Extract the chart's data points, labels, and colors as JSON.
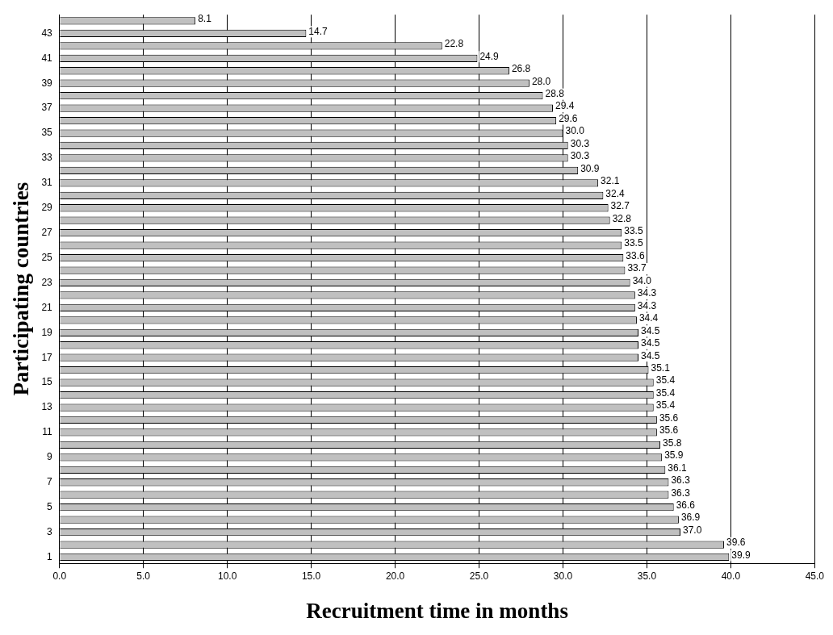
{
  "chart_data": {
    "type": "bar",
    "orientation": "horizontal",
    "xlabel": "Recruitment time in months",
    "ylabel": "Participating countries",
    "categories": [
      null,
      "43",
      null,
      "41",
      null,
      "39",
      null,
      "37",
      null,
      "35",
      null,
      "33",
      null,
      "31",
      null,
      "29",
      null,
      "27",
      null,
      "25",
      null,
      "23",
      null,
      "21",
      null,
      "19",
      null,
      "17",
      null,
      "15",
      null,
      "13",
      null,
      "11",
      null,
      "9",
      null,
      "7",
      null,
      "5",
      null,
      "3",
      null,
      "1"
    ],
    "values": [
      8.1,
      14.7,
      22.8,
      24.9,
      26.8,
      28.0,
      28.8,
      29.4,
      29.6,
      30.0,
      30.3,
      30.3,
      30.9,
      32.1,
      32.4,
      32.7,
      32.8,
      33.5,
      33.5,
      33.6,
      33.7,
      34.0,
      34.3,
      34.3,
      34.4,
      34.5,
      34.5,
      34.5,
      35.1,
      35.4,
      35.4,
      35.4,
      35.6,
      35.6,
      35.8,
      35.9,
      36.1,
      36.3,
      36.3,
      36.6,
      36.9,
      37.0,
      39.6,
      39.9
    ],
    "value_labels": [
      "8.1",
      "14.7",
      "22.8",
      "24.9",
      "26.8",
      "28.0",
      "28.8",
      "29.4",
      "29.6",
      "30.0",
      "30.3",
      "30.3",
      "30.9",
      "32.1",
      "32.4",
      "32.7",
      "32.8",
      "33.5",
      "33.5",
      "33.6",
      "33.7",
      "34.0",
      "34.3",
      "34.3",
      "34.4",
      "34.5",
      "34.5",
      "34.5",
      "35.1",
      "35.4",
      "35.4",
      "35.4",
      "35.6",
      "35.6",
      "35.8",
      "35.9",
      "36.1",
      "36.3",
      "36.3",
      "36.6",
      "36.9",
      "37.0",
      "39.6",
      "39.9"
    ],
    "color": "#c0c0c0",
    "xlim": [
      0,
      45
    ],
    "xticks": [
      {
        "value": 0,
        "label": "0.0"
      },
      {
        "value": 5,
        "label": "5.0"
      },
      {
        "value": 10,
        "label": "10.0"
      },
      {
        "value": 15,
        "label": "15.0"
      },
      {
        "value": 20,
        "label": "20.0"
      },
      {
        "value": 25,
        "label": "25.0"
      },
      {
        "value": 30,
        "label": "30.0"
      },
      {
        "value": 35,
        "label": "35.0"
      },
      {
        "value": 40,
        "label": "40.0"
      },
      {
        "value": 45,
        "label": "45.0"
      }
    ],
    "grid": "x",
    "legend": false
  }
}
